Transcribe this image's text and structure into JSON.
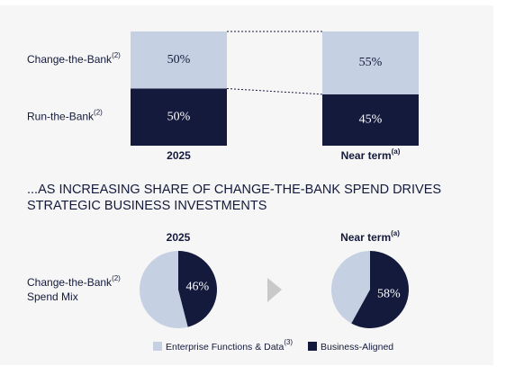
{
  "chart_data": [
    {
      "type": "bar",
      "stacked": true,
      "connectors": true,
      "categories": [
        "2025",
        "Near term"
      ],
      "category_notes": [
        null,
        "(a)"
      ],
      "ylim": [
        0,
        100
      ],
      "series": [
        {
          "name": "Run-the-Bank",
          "note": "(2)",
          "color": "#141a3c",
          "label_color": "#ffffff",
          "values": [
            50,
            45
          ],
          "value_labels": [
            "50%",
            "45%"
          ]
        },
        {
          "name": "Change-the-Bank",
          "note": "(2)",
          "color": "#c6d0e3",
          "label_color": "#141a3c",
          "values": [
            50,
            55
          ],
          "value_labels": [
            "50%",
            "55%"
          ]
        }
      ]
    },
    {
      "type": "pie",
      "title": "2025",
      "categories": [
        "Enterprise Functions & Data",
        "Business-Aligned"
      ],
      "category_notes": [
        "(3)",
        null
      ],
      "colors": [
        "#c6d0e3",
        "#141a3c"
      ],
      "values": [
        54,
        46
      ],
      "value_labels": [
        null,
        "46%"
      ]
    },
    {
      "type": "pie",
      "title": "Near term",
      "title_note": "(a)",
      "categories": [
        "Enterprise Functions & Data",
        "Business-Aligned"
      ],
      "colors": [
        "#c6d0e3",
        "#141a3c"
      ],
      "values": [
        42,
        58
      ],
      "value_labels": [
        null,
        "58%"
      ]
    }
  ],
  "section_heading": [
    "...AS INCREASING SHARE OF CHANGE-THE-BANK SPEND DRIVES",
    "STRATEGIC BUSINESS INVESTMENTS"
  ],
  "pie_row_label": [
    "Change-the-Bank",
    "Spend Mix"
  ],
  "pie_row_label_note": "(2)"
}
